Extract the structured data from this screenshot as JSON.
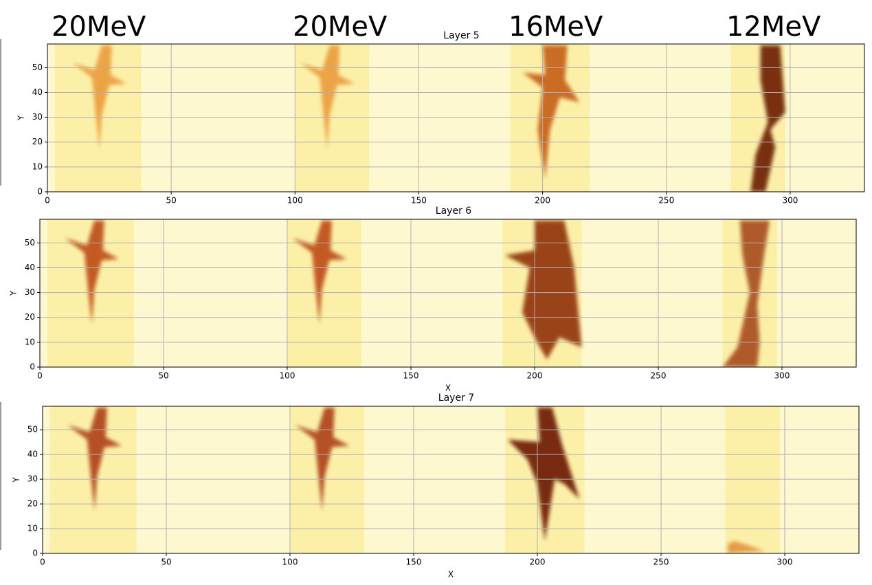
{
  "annotations": [
    "20MeV",
    "20MeV",
    "16MeV",
    "12MeV"
  ],
  "chart_data": [
    {
      "type": "heatmap",
      "title": "Layer 5",
      "ylabel": "Y",
      "xlim": [
        0,
        330
      ],
      "ylim": [
        0,
        59.5
      ],
      "xticks": [
        0,
        50,
        100,
        150,
        200,
        250,
        300
      ],
      "yticks": [
        0,
        10,
        20,
        30,
        40,
        50
      ],
      "grid": true
    },
    {
      "type": "heatmap",
      "title": "Layer 6",
      "xlabel": "X",
      "ylabel": "Y",
      "xlim": [
        0,
        330
      ],
      "ylim": [
        0,
        59.5
      ],
      "xticks": [
        0,
        50,
        100,
        150,
        200,
        250,
        300
      ],
      "yticks": [
        0,
        10,
        20,
        30,
        40,
        50
      ],
      "grid": true
    },
    {
      "type": "heatmap",
      "title": "Layer 7",
      "xlabel": "X",
      "ylabel": "Y",
      "xlim": [
        0,
        330
      ],
      "ylim": [
        0,
        59.5
      ],
      "xticks": [
        0,
        50,
        100,
        150,
        200,
        250,
        300
      ],
      "yticks": [
        0,
        10,
        20,
        30,
        40,
        50
      ],
      "grid": true
    }
  ]
}
